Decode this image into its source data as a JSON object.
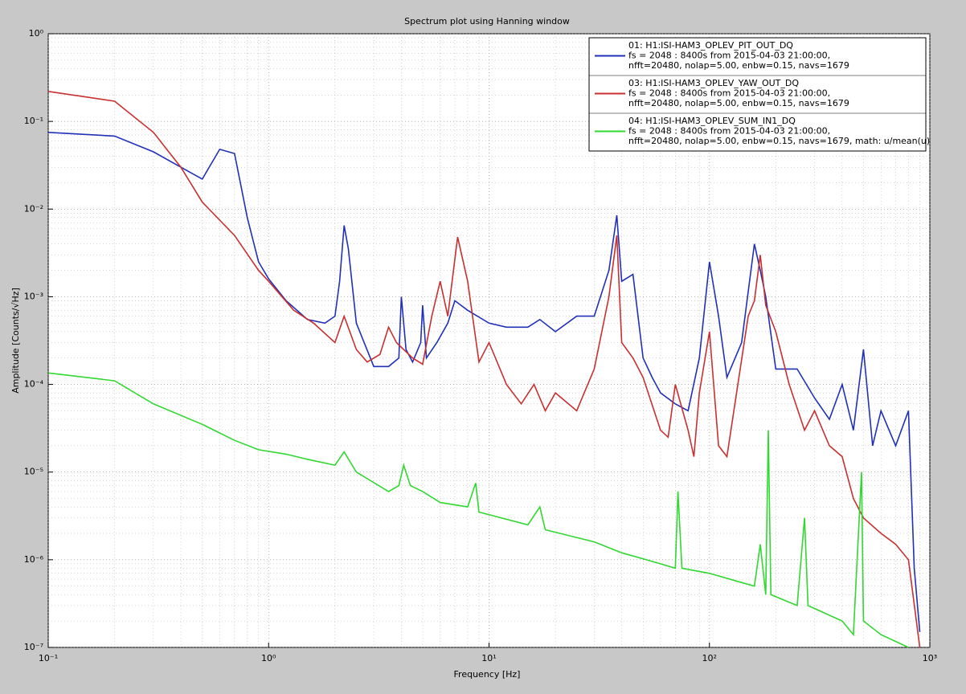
{
  "chart_data": {
    "type": "line",
    "title": "Spectrum plot using Hanning window",
    "x_label": "Frequency [Hz]",
    "y_label": "Amplitude [Counts/√Hz]",
    "xscale": "log",
    "yscale": "log",
    "grid": true,
    "legend": "upper right",
    "xlim": [
      0.1,
      1000
    ],
    "ylim": [
      1e-07,
      1
    ],
    "xticks": [
      {
        "value": 0.1,
        "label": "10⁻¹"
      },
      {
        "value": 1,
        "label": "10⁰"
      },
      {
        "value": 10,
        "label": "10¹"
      },
      {
        "value": 100,
        "label": "10²"
      },
      {
        "value": 1000,
        "label": "10³"
      }
    ],
    "yticks": [
      {
        "value": 1e-07,
        "label": "10⁻⁷"
      },
      {
        "value": 1e-06,
        "label": "10⁻⁶"
      },
      {
        "value": 1e-05,
        "label": "10⁻⁵"
      },
      {
        "value": 0.0001,
        "label": "10⁻⁴"
      },
      {
        "value": 0.001,
        "label": "10⁻³"
      },
      {
        "value": 0.01,
        "label": "10⁻²"
      },
      {
        "value": 0.1,
        "label": "10⁻¹"
      },
      {
        "value": 1,
        "label": "10⁰"
      }
    ],
    "series": [
      {
        "name": "01: H1:ISI-HAM3_OPLEV_PIT_OUT_DQ",
        "details": [
          "fs = 2048 : 8400s from 2015-04-03 21:00:00,",
          "nfft=20480, nolap=5.00, enbw=0.15, navs=1679"
        ],
        "color": "#2030b8",
        "x": [
          0.1,
          0.2,
          0.3,
          0.4,
          0.5,
          0.6,
          0.7,
          0.8,
          0.9,
          1.0,
          1.2,
          1.5,
          1.8,
          2.0,
          2.1,
          2.2,
          2.3,
          2.5,
          3.0,
          3.5,
          3.9,
          4.0,
          4.2,
          4.5,
          4.9,
          5.0,
          5.2,
          5.8,
          6.5,
          7.0,
          8,
          10,
          12,
          15,
          17,
          20,
          25,
          30,
          35,
          38,
          40,
          45,
          50,
          55,
          60,
          70,
          80,
          90,
          100,
          110,
          120,
          140,
          160,
          170,
          180,
          200,
          250,
          300,
          350,
          400,
          450,
          500,
          550,
          600,
          700,
          800,
          850,
          900
        ],
        "values": [
          0.075,
          0.068,
          0.045,
          0.03,
          0.022,
          0.048,
          0.043,
          0.008,
          0.0025,
          0.0016,
          0.0009,
          0.00055,
          0.0005,
          0.0006,
          0.0015,
          0.0065,
          0.0035,
          0.0005,
          0.00016,
          0.00016,
          0.0002,
          0.001,
          0.00025,
          0.00018,
          0.0003,
          0.0008,
          0.0002,
          0.0003,
          0.0005,
          0.0009,
          0.0007,
          0.0005,
          0.00045,
          0.00045,
          0.00055,
          0.0004,
          0.0006,
          0.0006,
          0.002,
          0.0085,
          0.0015,
          0.0018,
          0.0002,
          0.00012,
          8e-05,
          6e-05,
          5e-05,
          0.0002,
          0.0025,
          0.0006,
          0.00012,
          0.0003,
          0.004,
          0.002,
          0.001,
          0.00015,
          0.00015,
          7e-05,
          4e-05,
          0.0001,
          3e-05,
          0.00025,
          2e-05,
          5e-05,
          2e-05,
          5e-05,
          8e-07,
          1.5e-07
        ]
      },
      {
        "name": "03: H1:ISI-HAM3_OPLEV_YAW_OUT_DQ",
        "details": [
          "fs = 2048 : 8400s from 2015-04-03 21:00:00,",
          "nfft=20480, nolap=5.00, enbw=0.15, navs=1679"
        ],
        "color": "#c83030",
        "x": [
          0.1,
          0.2,
          0.3,
          0.4,
          0.5,
          0.7,
          0.9,
          1.0,
          1.3,
          1.6,
          2.0,
          2.2,
          2.5,
          2.8,
          3.2,
          3.5,
          3.8,
          4.5,
          5,
          5.5,
          6,
          6.5,
          7.2,
          8,
          9,
          10,
          12,
          14,
          16,
          18,
          20,
          25,
          30,
          35,
          38,
          40,
          45,
          50,
          60,
          65,
          70,
          80,
          85,
          90,
          100,
          110,
          120,
          150,
          160,
          170,
          180,
          200,
          230,
          270,
          300,
          350,
          400,
          450,
          500,
          600,
          700,
          800,
          900
        ],
        "values": [
          0.22,
          0.17,
          0.075,
          0.03,
          0.012,
          0.005,
          0.002,
          0.0015,
          0.0007,
          0.0005,
          0.0003,
          0.0006,
          0.00025,
          0.00018,
          0.00022,
          0.00045,
          0.0003,
          0.0002,
          0.00017,
          0.0006,
          0.0015,
          0.0006,
          0.0048,
          0.0015,
          0.00018,
          0.0003,
          0.0001,
          6e-05,
          0.0001,
          5e-05,
          8e-05,
          5e-05,
          0.00015,
          0.001,
          0.005,
          0.0003,
          0.0002,
          0.00012,
          3e-05,
          2.5e-05,
          0.0001,
          3e-05,
          1.5e-05,
          8e-05,
          0.0004,
          2e-05,
          1.5e-05,
          0.0006,
          0.0009,
          0.003,
          0.0008,
          0.0004,
          0.0001,
          3e-05,
          5e-05,
          2e-05,
          1.5e-05,
          5e-06,
          3e-06,
          2e-06,
          1.5e-06,
          1e-06,
          1e-07
        ]
      },
      {
        "name": "04: H1:ISI-HAM3_OPLEV_SUM_IN1_DQ",
        "details": [
          "fs = 2048 : 8400s from 2015-04-03 21:00:00,",
          "nfft=20480, nolap=5.00, enbw=0.15, navs=1679, math: u/mean(u)"
        ],
        "color": "#30d830",
        "x": [
          0.1,
          0.2,
          0.3,
          0.5,
          0.7,
          0.9,
          1.2,
          1.5,
          2.0,
          2.2,
          2.5,
          3.5,
          3.9,
          4.1,
          4.4,
          5,
          6,
          8,
          8.7,
          9,
          15,
          17,
          18,
          30,
          40,
          60,
          70,
          72,
          75,
          100,
          140,
          160,
          170,
          180,
          185,
          190,
          250,
          270,
          280,
          400,
          450,
          490,
          500,
          600,
          800
        ],
        "values": [
          0.000135,
          0.00011,
          6e-05,
          3.5e-05,
          2.3e-05,
          1.8e-05,
          1.6e-05,
          1.4e-05,
          1.2e-05,
          1.7e-05,
          1e-05,
          6e-06,
          7e-06,
          1.2e-05,
          7e-06,
          6e-06,
          4.5e-06,
          4e-06,
          7.5e-06,
          3.5e-06,
          2.5e-06,
          4e-06,
          2.2e-06,
          1.6e-06,
          1.2e-06,
          9e-07,
          8e-07,
          6e-06,
          8e-07,
          7e-07,
          5.5e-07,
          5e-07,
          1.5e-06,
          4e-07,
          3e-05,
          4e-07,
          3e-07,
          3e-06,
          3e-07,
          2e-07,
          1.4e-07,
          1e-05,
          2e-07,
          1.4e-07,
          1e-07
        ]
      }
    ]
  }
}
